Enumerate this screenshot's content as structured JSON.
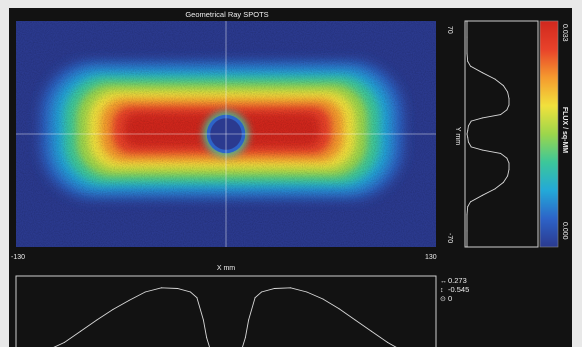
{
  "chart_data": [
    {
      "type": "heatmap",
      "title": "Geometrical Ray SPOTS",
      "xlabel": "X mm",
      "ylabel": "Y mm",
      "xlim": [
        -130,
        130
      ],
      "ylim": [
        -70,
        70
      ],
      "x_tick_labels": [
        "-130",
        "130"
      ],
      "y_tick_labels": [
        "70",
        "-70"
      ],
      "shape": "rounded rectangular spot with central circular hole",
      "spot_extent_x": [
        -115,
        110
      ],
      "spot_extent_y": [
        -40,
        45
      ],
      "hole_center": [
        0,
        0
      ],
      "hole_radius": 11,
      "crosshair": [
        0,
        0
      ],
      "colorbar": {
        "label": "FLUX / sq-MM",
        "min": 0.0,
        "max": 0.033,
        "min_label": "0.000",
        "max_label": "0.033",
        "colors": [
          "#2b3a8f",
          "#2d63c8",
          "#23a9d8",
          "#3cc79a",
          "#9cd64b",
          "#f1e13c",
          "#f59a2e",
          "#e8422a",
          "#d0281e"
        ]
      }
    },
    {
      "type": "line",
      "name": "y-profile",
      "axis": "Y mm",
      "y": [
        70,
        60,
        50,
        45,
        42,
        38,
        34,
        30,
        26,
        22,
        18,
        15,
        12,
        10,
        8,
        5,
        2,
        0,
        -2,
        -5,
        -8,
        -10,
        -12,
        -15,
        -18,
        -22,
        -26,
        -30,
        -34,
        -38,
        -42,
        -45,
        -50,
        -60,
        -70
      ],
      "values": [
        0,
        0,
        0,
        0.01,
        0.05,
        0.22,
        0.4,
        0.52,
        0.58,
        0.6,
        0.6,
        0.57,
        0.48,
        0.22,
        0.06,
        0.02,
        0.01,
        0.0,
        0.01,
        0.02,
        0.06,
        0.22,
        0.48,
        0.57,
        0.6,
        0.6,
        0.58,
        0.52,
        0.4,
        0.22,
        0.05,
        0.01,
        0,
        0,
        0
      ]
    },
    {
      "type": "line",
      "name": "x-profile",
      "axis": "X mm",
      "x": [
        -130,
        -115,
        -100,
        -90,
        -80,
        -70,
        -60,
        -50,
        -40,
        -30,
        -22,
        -18,
        -14,
        -12,
        -10,
        -6,
        -2,
        0,
        2,
        6,
        10,
        12,
        14,
        18,
        22,
        30,
        40,
        50,
        60,
        70,
        80,
        90,
        100,
        110,
        120,
        130
      ],
      "values": [
        0.0,
        0.02,
        0.18,
        0.34,
        0.5,
        0.65,
        0.78,
        0.9,
        0.96,
        0.95,
        0.9,
        0.82,
        0.5,
        0.25,
        0.1,
        0.04,
        0.0,
        0.0,
        0.0,
        0.04,
        0.1,
        0.25,
        0.5,
        0.82,
        0.9,
        0.95,
        0.96,
        0.9,
        0.8,
        0.66,
        0.5,
        0.34,
        0.18,
        0.05,
        0.0,
        0.0
      ],
      "readouts": [
        {
          "symbol": "↔",
          "value": "0.273"
        },
        {
          "symbol": "↕",
          "value": "-0.545"
        },
        {
          "symbol": "⊙",
          "value": "0"
        }
      ]
    }
  ]
}
